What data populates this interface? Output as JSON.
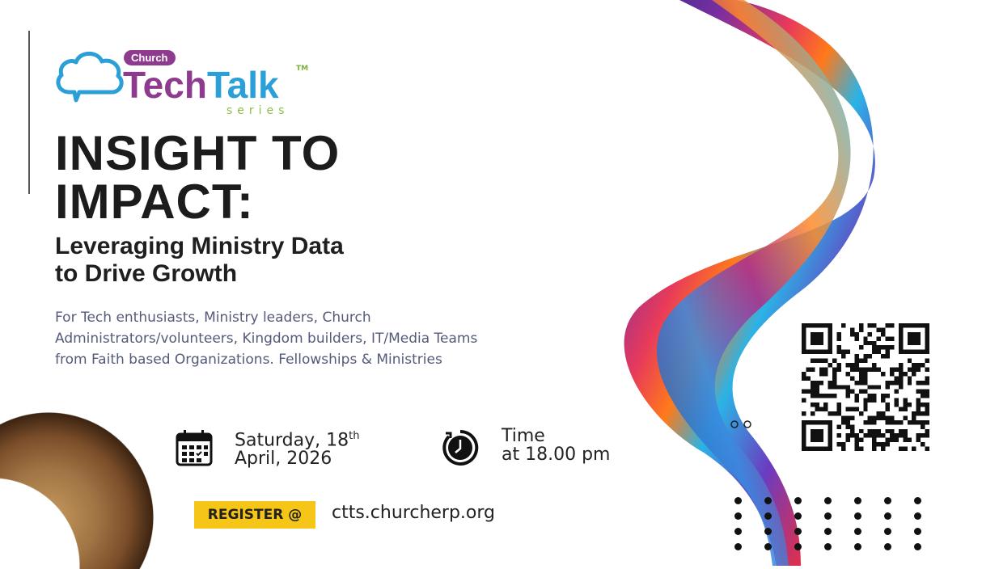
{
  "logo": {
    "badge": "Church",
    "word1": "Tech",
    "word2": "Talk",
    "trademark": "TM",
    "series": "series"
  },
  "headline": {
    "line1": "INSIGHT TO",
    "line2": "IMPACT:"
  },
  "subheadline": {
    "line1": "Leveraging Ministry Data",
    "line2": "to Drive Growth"
  },
  "audience": "For Tech enthusiasts, Ministry  leaders, Church Administrators/volunteers, Kingdom builders, IT/Media Teams from Faith based Organizations. Fellowships & Ministries",
  "event": {
    "date_line1": "Saturday, 18",
    "date_suffix": "th",
    "date_line2": "April, 2026",
    "time_line1": "Time",
    "time_line2": "at 18.00 pm"
  },
  "register": {
    "label": "REGISTER @",
    "url": "ctts.churcherp.org"
  },
  "icons": {
    "date": "calendar-icon",
    "time": "clock-icon",
    "logo": "cloud-icon",
    "code": "qr-code"
  },
  "colors": {
    "brand_purple": "#8e3b8f",
    "brand_blue": "#2a9fd8",
    "accent_yellow": "#f5c518",
    "series_green": "#8bbf44"
  }
}
